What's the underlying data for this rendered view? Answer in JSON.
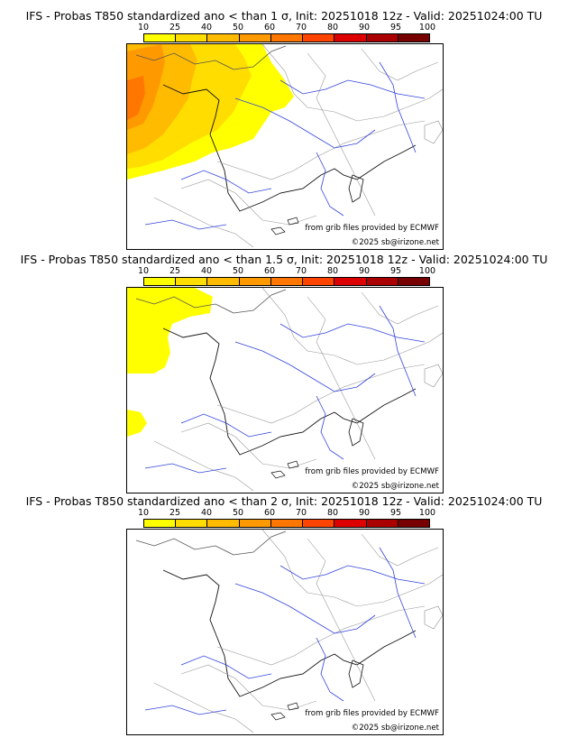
{
  "colorbar": {
    "ticks": [
      "10",
      "25",
      "40",
      "50",
      "60",
      "70",
      "80",
      "90",
      "95",
      "100"
    ],
    "colors": [
      "#ffff00",
      "#ffdd00",
      "#ffbb00",
      "#ff9900",
      "#ff7700",
      "#ff4400",
      "#dd0000",
      "#aa0000",
      "#770000"
    ]
  },
  "panels": [
    {
      "title": "IFS - Probas T850  standardized ano < than 1 σ, Init: 20251018 12z - Valid: 20251024:00 TU",
      "source": "from grib files provided by ECMWF",
      "copyright": "©2025 sb@irizone.net",
      "shaded_levels": [
        "#ffff00",
        "#ffdd00",
        "#ffbb00",
        "#ff9900",
        "#ff7700"
      ]
    },
    {
      "title": "IFS - Probas T850  standardized ano < than 1.5 σ, Init: 20251018 12z - Valid: 20251024:00 TU",
      "source": "from grib files provided by ECMWF",
      "copyright": "©2025 sb@irizone.net",
      "shaded_levels": [
        "#ffff00"
      ]
    },
    {
      "title": "IFS - Probas T850  standardized ano < than 2 σ, Init: 20251018 12z - Valid: 20251024:00 TU",
      "source": "from grib files provided by ECMWF",
      "copyright": "©2025 sb@irizone.net",
      "shaded_levels": []
    }
  ]
}
